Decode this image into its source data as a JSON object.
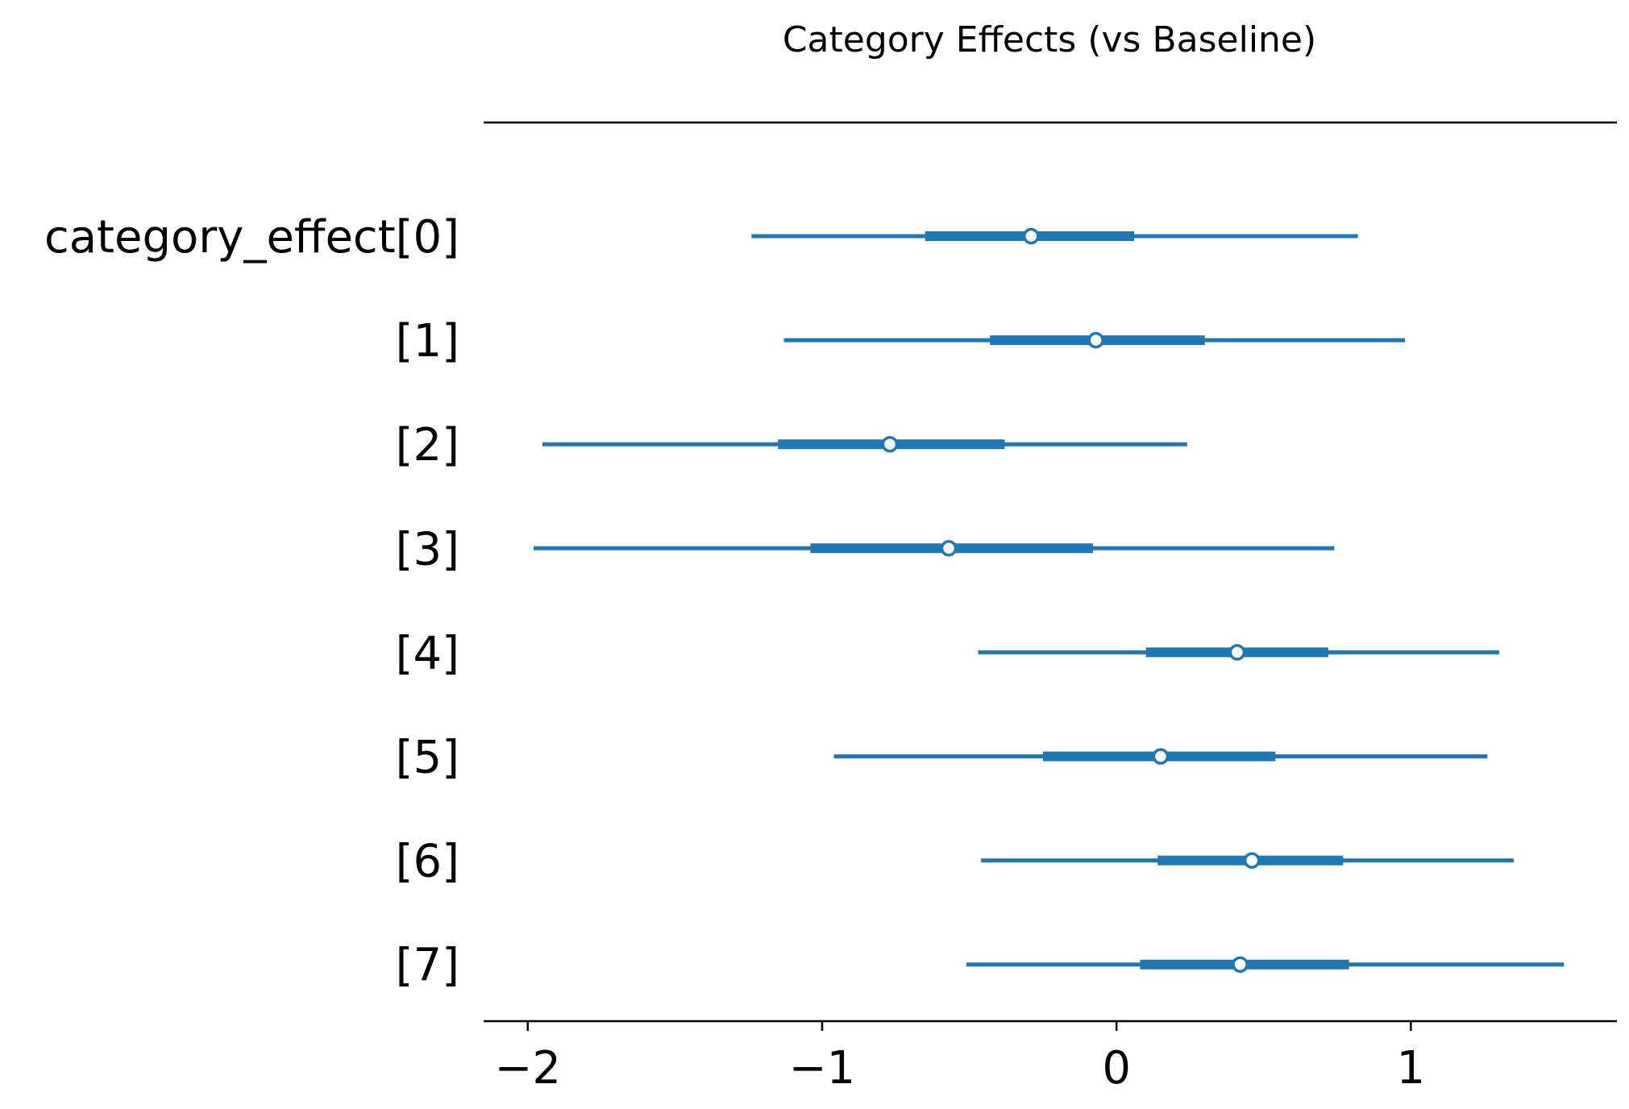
{
  "chart_data": {
    "type": "forest",
    "title": "Category Effects (vs Baseline)",
    "xlabel": "",
    "ylabel": "",
    "xlim": [
      -2.15,
      1.7
    ],
    "xticks": [
      -2,
      -1,
      0,
      1
    ],
    "xtick_labels": [
      "−2",
      "−1",
      "0",
      "1"
    ],
    "grid": false,
    "color": "#1f77b4",
    "series": [
      {
        "label": "category_effect[0]",
        "mean": -0.29,
        "hdi_50": [
          -0.65,
          0.06
        ],
        "hdi_94": [
          -1.24,
          0.82
        ]
      },
      {
        "label": "[1]",
        "mean": -0.07,
        "hdi_50": [
          -0.43,
          0.3
        ],
        "hdi_94": [
          -1.13,
          0.98
        ]
      },
      {
        "label": "[2]",
        "mean": -0.77,
        "hdi_50": [
          -1.15,
          -0.38
        ],
        "hdi_94": [
          -1.95,
          0.24
        ]
      },
      {
        "label": "[3]",
        "mean": -0.57,
        "hdi_50": [
          -1.04,
          -0.08
        ],
        "hdi_94": [
          -1.98,
          0.74
        ]
      },
      {
        "label": "[4]",
        "mean": 0.41,
        "hdi_50": [
          0.1,
          0.72
        ],
        "hdi_94": [
          -0.47,
          1.3
        ]
      },
      {
        "label": "[5]",
        "mean": 0.15,
        "hdi_50": [
          -0.25,
          0.54
        ],
        "hdi_94": [
          -0.96,
          1.26
        ]
      },
      {
        "label": "[6]",
        "mean": 0.46,
        "hdi_50": [
          0.14,
          0.77
        ],
        "hdi_94": [
          -0.46,
          1.35
        ]
      },
      {
        "label": "[7]",
        "mean": 0.42,
        "hdi_50": [
          0.08,
          0.79
        ],
        "hdi_94": [
          -0.51,
          1.52
        ]
      }
    ]
  }
}
